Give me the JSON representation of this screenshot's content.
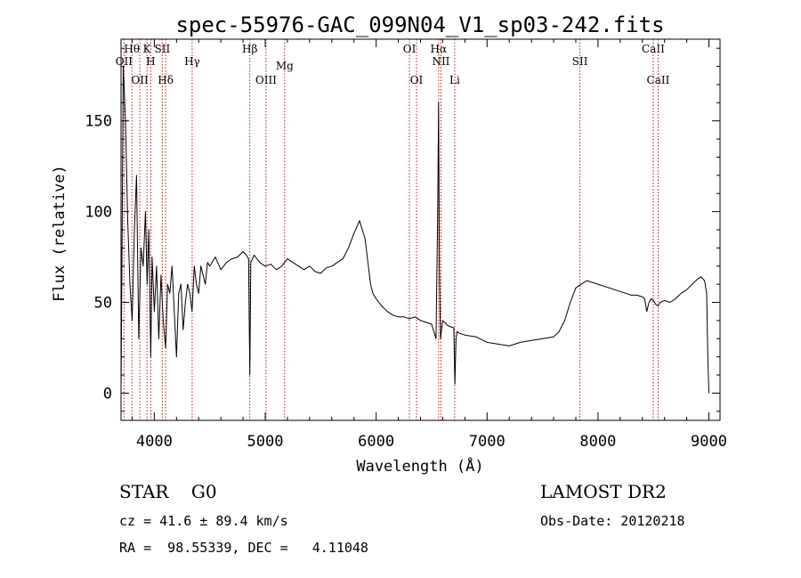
{
  "chart_data": {
    "type": "line",
    "title": "spec-55976-GAC_099N04_V1_sp03-242.fits",
    "xlabel": "Wavelength (Å)",
    "ylabel": "Flux (relative)",
    "xlim": [
      3700,
      9100
    ],
    "ylim": [
      -15,
      195
    ],
    "xticks": [
      4000,
      5000,
      6000,
      7000,
      8000,
      9000
    ],
    "yticks": [
      0,
      50,
      100,
      150
    ],
    "grid": false,
    "series": [
      {
        "x": [
          3700,
          3720,
          3740,
          3760,
          3780,
          3800,
          3820,
          3840,
          3860,
          3880,
          3900,
          3920,
          3935,
          3950,
          3968,
          3980,
          4000,
          4020,
          4040,
          4060,
          4080,
          4102,
          4120,
          4140,
          4160,
          4180,
          4200,
          4220,
          4240,
          4260,
          4280,
          4300,
          4320,
          4340,
          4360,
          4380,
          4400,
          4420,
          4440,
          4460,
          4480,
          4500,
          4550,
          4600,
          4650,
          4700,
          4750,
          4800,
          4830,
          4850,
          4861,
          4870,
          4900,
          4950,
          5000,
          5050,
          5100,
          5150,
          5200,
          5250,
          5300,
          5350,
          5400,
          5450,
          5500,
          5550,
          5600,
          5650,
          5700,
          5750,
          5800,
          5850,
          5900,
          5930,
          5950,
          5970,
          6000,
          6050,
          6100,
          6150,
          6200,
          6250,
          6300,
          6350,
          6400,
          6450,
          6500,
          6540,
          6555,
          6563,
          6570,
          6580,
          6600,
          6650,
          6700,
          6710,
          6720,
          6730,
          6750,
          6800,
          6900,
          7000,
          7100,
          7200,
          7300,
          7400,
          7500,
          7600,
          7650,
          7700,
          7750,
          7800,
          7850,
          7900,
          7950,
          8000,
          8050,
          8100,
          8150,
          8200,
          8250,
          8300,
          8350,
          8400,
          8420,
          8440,
          8460,
          8480,
          8500,
          8520,
          8540,
          8560,
          8600,
          8650,
          8700,
          8750,
          8800,
          8850,
          8900,
          8930,
          8960,
          8980,
          8990,
          9000
        ],
        "y": [
          0,
          180,
          150,
          95,
          60,
          40,
          90,
          120,
          30,
          80,
          70,
          100,
          60,
          90,
          20,
          75,
          45,
          70,
          30,
          65,
          40,
          25,
          60,
          55,
          70,
          45,
          20,
          55,
          60,
          35,
          50,
          60,
          55,
          45,
          70,
          60,
          55,
          70,
          65,
          60,
          72,
          70,
          75,
          68,
          72,
          74,
          75,
          78,
          76,
          74,
          10,
          72,
          76,
          72,
          70,
          71,
          68,
          70,
          74,
          72,
          70,
          68,
          70,
          67,
          66,
          69,
          70,
          72,
          74,
          80,
          88,
          95,
          85,
          70,
          60,
          55,
          52,
          48,
          45,
          43,
          42,
          42,
          41,
          42,
          40,
          39,
          38,
          30,
          100,
          160,
          70,
          30,
          40,
          37,
          36,
          5,
          30,
          34,
          33,
          32,
          31,
          28,
          27,
          26,
          28,
          29,
          30,
          31,
          34,
          40,
          50,
          58,
          60,
          62,
          61,
          60,
          59,
          58,
          57,
          56,
          55,
          54,
          54,
          53,
          52,
          45,
          50,
          52,
          51,
          49,
          48,
          50,
          51,
          50,
          52,
          55,
          57,
          60,
          63,
          64,
          62,
          55,
          20,
          0
        ]
      }
    ],
    "lines": [
      {
        "label": "OII",
        "x": 3727
      },
      {
        "label": "Hθ",
        "x": 3798
      },
      {
        "label": "OII",
        "x": 3869
      },
      {
        "label": "K",
        "x": 3934
      },
      {
        "label": "H",
        "x": 3968
      },
      {
        "label": "SII",
        "x": 4072
      },
      {
        "label": "Hδ",
        "x": 4102
      },
      {
        "label": "Hγ",
        "x": 4341
      },
      {
        "label": "Hβ",
        "x": 4861
      },
      {
        "label": "OIII",
        "x": 5007
      },
      {
        "label": "Mg",
        "x": 5175
      },
      {
        "label": "OI",
        "x": 6300
      },
      {
        "label": "OI",
        "x": 6364
      },
      {
        "label": "Hα",
        "x": 6563
      },
      {
        "label": "NII",
        "x": 6584
      },
      {
        "label": "Li",
        "x": 6708
      },
      {
        "label": "SII",
        "x": 7837
      },
      {
        "label": "CaII",
        "x": 8498
      },
      {
        "label": "CaII",
        "x": 8542
      }
    ]
  },
  "info": {
    "classification": "STAR    G0",
    "survey": "LAMOST DR2",
    "cz": "cz = 41.6 ± 89.4 km/s",
    "obs_date": "Obs-Date: 20120218",
    "radec": "RA =  98.55339, DEC =   4.11048"
  },
  "colors": {
    "spectrum": "#000000",
    "line_marker": "#c01818"
  }
}
